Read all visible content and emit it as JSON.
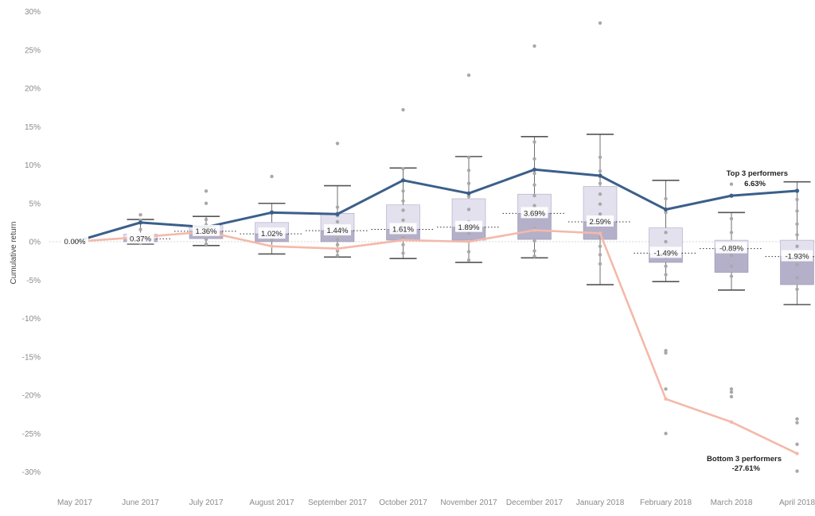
{
  "chart_data": {
    "type": "line",
    "ylabel": "Cumulative return",
    "ylim": [
      -31,
      31
    ],
    "yticks": [
      30,
      25,
      20,
      15,
      10,
      5,
      0,
      -5,
      -10,
      -15,
      -20,
      -25,
      -30
    ],
    "ytick_labels": [
      "30%",
      "25%",
      "20%",
      "15%",
      "10%",
      "5%",
      "0%",
      "-5%",
      "-10%",
      "-15%",
      "-20%",
      "-25%",
      "-30%"
    ],
    "categories": [
      "May 2017",
      "June 2017",
      "July 2017",
      "August 2017",
      "September 2017",
      "October 2017",
      "November 2017",
      "December 2017",
      "January 2018",
      "February 2018",
      "March 2018",
      "April 2018"
    ],
    "series": [
      {
        "name": "Top 3 performers",
        "color": "#3b5f8a",
        "values": [
          0.0,
          2.5,
          1.9,
          3.8,
          3.6,
          8.0,
          6.3,
          9.4,
          8.6,
          4.2,
          6.0,
          6.63
        ],
        "end_label": "6.63%"
      },
      {
        "name": "Bottom 3 performers",
        "color": "#f4b9aa",
        "values": [
          0.0,
          0.6,
          1.3,
          -0.6,
          -0.9,
          0.2,
          0.0,
          1.5,
          1.1,
          -20.5,
          -23.5,
          -27.61
        ],
        "end_label": "-27.61%"
      }
    ],
    "boxes": [
      {
        "median": 0.0,
        "q1": 0.0,
        "q3": 0.0,
        "low": 0.0,
        "high": 0.0
      },
      {
        "median": 0.37,
        "q1": 0.0,
        "q3": 1.0,
        "low": -0.3,
        "high": 2.9
      },
      {
        "median": 1.36,
        "q1": 0.4,
        "q3": 2.1,
        "low": -0.5,
        "high": 3.3
      },
      {
        "median": 1.02,
        "q1": 0.0,
        "q3": 2.5,
        "low": -1.6,
        "high": 5.0
      },
      {
        "median": 1.44,
        "q1": 0.0,
        "q3": 3.7,
        "low": -2.0,
        "high": 7.3
      },
      {
        "median": 1.61,
        "q1": 0.2,
        "q3": 4.8,
        "low": -2.2,
        "high": 9.6
      },
      {
        "median": 1.89,
        "q1": 0.2,
        "q3": 5.6,
        "low": -2.7,
        "high": 11.1
      },
      {
        "median": 3.69,
        "q1": 0.3,
        "q3": 6.2,
        "low": -2.1,
        "high": 13.7
      },
      {
        "median": 2.59,
        "q1": 0.3,
        "q3": 7.2,
        "low": -5.6,
        "high": 14.0
      },
      {
        "median": -1.49,
        "q1": -2.7,
        "q3": 1.8,
        "low": -5.2,
        "high": 8.0
      },
      {
        "median": -0.89,
        "q1": -4.0,
        "q3": 0.2,
        "low": -6.3,
        "high": 3.8
      },
      {
        "median": -1.93,
        "q1": -5.6,
        "q3": 0.2,
        "low": -8.2,
        "high": 7.8
      }
    ],
    "median_labels": [
      "0.00%",
      "0.37%",
      "1.36%",
      "1.02%",
      "1.44%",
      "1.61%",
      "1.89%",
      "3.69%",
      "2.59%",
      "-1.49%",
      "-0.89%",
      "-1.93%"
    ],
    "points": [
      [
        0.0
      ],
      [
        3.5,
        2.8,
        1.6,
        0.8,
        0.4,
        0.0,
        -0.2
      ],
      [
        6.6,
        5.0,
        2.9,
        2.2,
        1.6,
        1.0,
        0.3,
        -0.3
      ],
      [
        8.5,
        3.9,
        1.5,
        0.6,
        0.2
      ],
      [
        12.8,
        4.5,
        3.4,
        2.6,
        1.2,
        0.3,
        -0.4,
        -1.2,
        -1.8
      ],
      [
        17.2,
        9.5,
        8.0,
        6.6,
        5.3,
        4.1,
        2.8,
        1.9,
        0.5,
        -0.4,
        -1.5
      ],
      [
        21.7,
        11.0,
        9.3,
        7.6,
        5.9,
        4.2,
        2.6,
        1.1,
        0.0,
        -1.3,
        -2.4
      ],
      [
        25.5,
        13.0,
        10.8,
        8.9,
        7.4,
        6.0,
        4.7,
        3.2,
        1.7,
        0.1,
        -1.2,
        -1.9
      ],
      [
        28.5,
        11.0,
        9.2,
        7.6,
        6.2,
        4.9,
        3.6,
        2.1,
        0.6,
        -0.6,
        -1.7,
        -2.9
      ],
      [
        5.6,
        3.8,
        1.2,
        0.0,
        -1.0,
        -2.0,
        -3.2,
        -4.3,
        -14.2,
        -14.5,
        -19.2,
        -25.0
      ],
      [
        7.5,
        3.0,
        1.2,
        -0.4,
        -1.8,
        -3.2,
        -4.5,
        -19.2,
        -19.6,
        -20.2
      ],
      [
        5.5,
        4.0,
        2.3,
        0.9,
        -0.6,
        -1.7,
        -3.0,
        -4.7,
        -6.2,
        -23.1,
        -23.6,
        -26.4,
        -29.9
      ]
    ],
    "grid": false,
    "legend": "none"
  }
}
